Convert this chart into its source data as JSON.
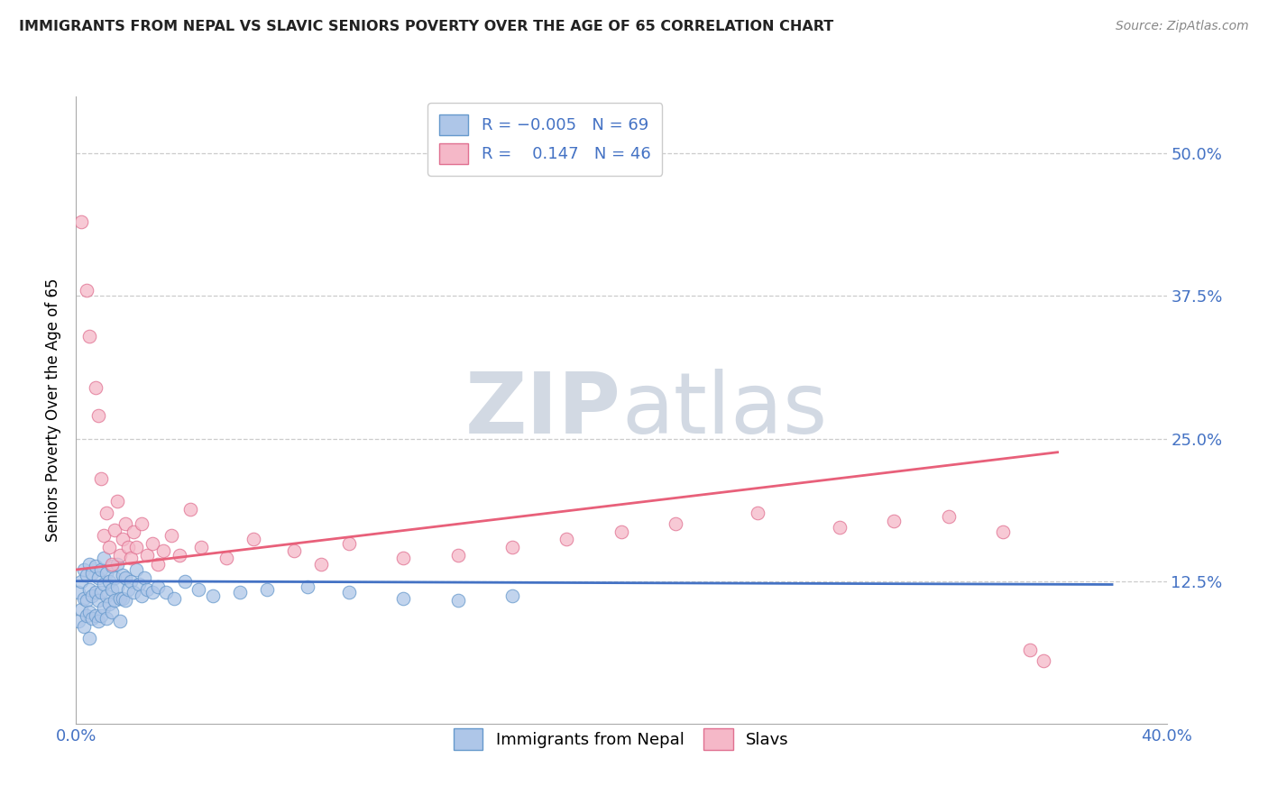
{
  "title": "IMMIGRANTS FROM NEPAL VS SLAVIC SENIORS POVERTY OVER THE AGE OF 65 CORRELATION CHART",
  "source": "Source: ZipAtlas.com",
  "ylabel": "Seniors Poverty Over the Age of 65",
  "xlim": [
    0.0,
    0.4
  ],
  "ylim": [
    0.0,
    0.55
  ],
  "yticks": [
    0.0,
    0.125,
    0.25,
    0.375,
    0.5
  ],
  "ytick_labels": [
    "",
    "12.5%",
    "25.0%",
    "37.5%",
    "50.0%"
  ],
  "xticks": [
    0.0,
    0.05,
    0.1,
    0.15,
    0.2,
    0.25,
    0.3,
    0.35,
    0.4
  ],
  "xtick_labels": [
    "0.0%",
    "",
    "",
    "",
    "",
    "",
    "",
    "",
    "40.0%"
  ],
  "nepal_R": -0.005,
  "nepal_N": 69,
  "slavic_R": 0.147,
  "slavic_N": 46,
  "nepal_color": "#aec6e8",
  "nepal_edge": "#6699cc",
  "slavic_color": "#f5b8c8",
  "slavic_edge": "#e07090",
  "nepal_line_color": "#4472c4",
  "slavic_line_color": "#e8607a",
  "grid_color": "#cccccc",
  "title_color": "#222222",
  "axis_label_color": "#4472c4",
  "source_color": "#888888",
  "legend_edge_color": "#cccccc",
  "watermark_color": "#cdd5e0",
  "nepal_line_x0": 0.0,
  "nepal_line_x1": 0.38,
  "nepal_line_y0": 0.125,
  "nepal_line_y1": 0.122,
  "slavic_line_x0": 0.0,
  "slavic_line_x1": 0.36,
  "slavic_line_y0": 0.135,
  "slavic_line_y1": 0.238,
  "nepal_x": [
    0.001,
    0.001,
    0.002,
    0.002,
    0.003,
    0.003,
    0.003,
    0.004,
    0.004,
    0.004,
    0.005,
    0.005,
    0.005,
    0.005,
    0.006,
    0.006,
    0.006,
    0.007,
    0.007,
    0.007,
    0.008,
    0.008,
    0.008,
    0.009,
    0.009,
    0.009,
    0.01,
    0.01,
    0.01,
    0.011,
    0.011,
    0.011,
    0.012,
    0.012,
    0.013,
    0.013,
    0.013,
    0.014,
    0.014,
    0.015,
    0.015,
    0.016,
    0.016,
    0.017,
    0.017,
    0.018,
    0.018,
    0.019,
    0.02,
    0.021,
    0.022,
    0.023,
    0.024,
    0.025,
    0.026,
    0.028,
    0.03,
    0.033,
    0.036,
    0.04,
    0.045,
    0.05,
    0.06,
    0.07,
    0.085,
    0.1,
    0.12,
    0.14,
    0.16
  ],
  "nepal_y": [
    0.115,
    0.09,
    0.125,
    0.1,
    0.135,
    0.11,
    0.085,
    0.13,
    0.108,
    0.095,
    0.14,
    0.118,
    0.098,
    0.075,
    0.132,
    0.112,
    0.092,
    0.138,
    0.115,
    0.095,
    0.128,
    0.108,
    0.09,
    0.135,
    0.115,
    0.095,
    0.145,
    0.122,
    0.102,
    0.132,
    0.112,
    0.092,
    0.125,
    0.105,
    0.138,
    0.118,
    0.098,
    0.128,
    0.108,
    0.14,
    0.12,
    0.11,
    0.09,
    0.13,
    0.11,
    0.128,
    0.108,
    0.118,
    0.125,
    0.115,
    0.135,
    0.122,
    0.112,
    0.128,
    0.118,
    0.115,
    0.12,
    0.115,
    0.11,
    0.125,
    0.118,
    0.112,
    0.115,
    0.118,
    0.12,
    0.115,
    0.11,
    0.108,
    0.112
  ],
  "slavic_x": [
    0.002,
    0.004,
    0.005,
    0.007,
    0.008,
    0.009,
    0.01,
    0.011,
    0.012,
    0.013,
    0.014,
    0.015,
    0.016,
    0.017,
    0.018,
    0.019,
    0.02,
    0.021,
    0.022,
    0.024,
    0.026,
    0.028,
    0.03,
    0.032,
    0.035,
    0.038,
    0.042,
    0.046,
    0.055,
    0.065,
    0.08,
    0.09,
    0.1,
    0.12,
    0.14,
    0.16,
    0.18,
    0.2,
    0.22,
    0.25,
    0.28,
    0.3,
    0.32,
    0.34,
    0.35,
    0.355
  ],
  "slavic_y": [
    0.44,
    0.38,
    0.34,
    0.295,
    0.27,
    0.215,
    0.165,
    0.185,
    0.155,
    0.14,
    0.17,
    0.195,
    0.148,
    0.162,
    0.175,
    0.155,
    0.145,
    0.168,
    0.155,
    0.175,
    0.148,
    0.158,
    0.14,
    0.152,
    0.165,
    0.148,
    0.188,
    0.155,
    0.145,
    0.162,
    0.152,
    0.14,
    0.158,
    0.145,
    0.148,
    0.155,
    0.162,
    0.168,
    0.175,
    0.185,
    0.172,
    0.178,
    0.182,
    0.168,
    0.065,
    0.055
  ]
}
